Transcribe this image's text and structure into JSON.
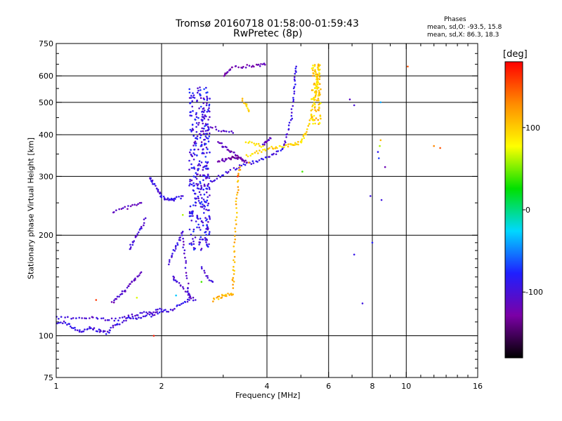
{
  "header": {
    "title_line1": "Tromsø 20160718 01:58:00-01:59:43",
    "title_line2": "RwPretec (8p)"
  },
  "stats": {
    "heading": "Phases",
    "o_mode": "mean, sd,O: -93.5, 15.8",
    "x_mode": "mean, sd,X: 86.3, 18.3"
  },
  "colorbar": {
    "unit_label": "[deg]",
    "ticks": [
      100,
      0,
      -100
    ],
    "range": [
      -180,
      180
    ],
    "colors": [
      "#000000",
      "#7b00a6",
      "#1f1fff",
      "#00d8ff",
      "#00e000",
      "#ffff00",
      "#ff8c00",
      "#ff0000"
    ]
  },
  "chart_data": {
    "type": "scatter",
    "title": "Tromsø 20160718 01:58:00-01:59:43",
    "subtitle": "RwPretec (8p)",
    "xlabel": "Frequency [MHz]",
    "ylabel": "Stationary phase Virtual Height [km]",
    "xscale": "log",
    "yscale": "log",
    "xlim": [
      1,
      16
    ],
    "ylim": [
      75,
      750
    ],
    "xticks": [
      1,
      2,
      4,
      6,
      8,
      10,
      16
    ],
    "yticks": [
      75,
      100,
      200,
      300,
      400,
      500,
      600,
      750
    ],
    "xgrid": [
      2,
      4,
      6,
      8,
      10
    ],
    "ygrid": [
      100,
      200,
      300,
      400,
      500,
      600
    ],
    "grid": true,
    "color_scale": "phase [deg]",
    "series": [
      {
        "traces": [
          {
            "pts": [
              [
                1.0,
                108
              ],
              [
                1.05,
                110
              ],
              [
                1.1,
                107
              ],
              [
                1.15,
                104
              ],
              [
                1.2,
                103
              ],
              [
                1.25,
                106
              ],
              [
                1.3,
                104
              ],
              [
                1.35,
                103
              ],
              [
                1.4,
                102
              ],
              [
                1.45,
                106
              ],
              [
                1.5,
                108
              ],
              [
                1.6,
                112
              ],
              [
                1.7,
                113
              ],
              [
                1.8,
                114
              ],
              [
                1.9,
                116
              ],
              [
                2.0,
                118
              ],
              [
                2.1,
                119
              ],
              [
                2.2,
                122
              ],
              [
                2.3,
                125
              ],
              [
                2.4,
                128
              ]
            ],
            "phase": -95
          },
          {
            "pts": [
              [
                1.0,
                113
              ],
              [
                1.1,
                113
              ],
              [
                1.2,
                114
              ],
              [
                1.3,
                113
              ],
              [
                1.4,
                112
              ],
              [
                1.5,
                112
              ],
              [
                1.6,
                114
              ],
              [
                1.7,
                116
              ],
              [
                1.8,
                117
              ],
              [
                1.9,
                118
              ],
              [
                2.0,
                120
              ]
            ],
            "phase": -100
          },
          {
            "pts": [
              [
                1.45,
                125
              ],
              [
                1.5,
                130
              ],
              [
                1.55,
                135
              ],
              [
                1.6,
                140
              ],
              [
                1.65,
                145
              ],
              [
                1.7,
                150
              ],
              [
                1.75,
                155
              ]
            ],
            "phase": -110
          },
          {
            "pts": [
              [
                1.45,
                235
              ],
              [
                1.55,
                240
              ],
              [
                1.65,
                245
              ],
              [
                1.75,
                250
              ]
            ],
            "phase": -110
          },
          {
            "pts": [
              [
                1.62,
                180
              ],
              [
                1.65,
                190
              ],
              [
                1.7,
                200
              ],
              [
                1.75,
                210
              ],
              [
                1.8,
                225
              ]
            ],
            "phase": -100
          },
          {
            "pts": [
              [
                1.85,
                295
              ],
              [
                1.88,
                290
              ],
              [
                1.92,
                280
              ],
              [
                1.96,
                270
              ],
              [
                2.0,
                262
              ],
              [
                2.05,
                258
              ],
              [
                2.1,
                256
              ],
              [
                2.15,
                255
              ],
              [
                2.2,
                257
              ],
              [
                2.3,
                262
              ]
            ],
            "phase": -95
          },
          {
            "pts": [
              [
                2.1,
                165
              ],
              [
                2.15,
                175
              ],
              [
                2.2,
                185
              ],
              [
                2.25,
                195
              ],
              [
                2.3,
                205
              ]
            ],
            "phase": -95
          },
          {
            "pts": [
              [
                2.15,
                150
              ],
              [
                2.2,
                145
              ],
              [
                2.3,
                140
              ],
              [
                2.4,
                132
              ],
              [
                2.5,
                128
              ]
            ],
            "phase": -100
          }
        ],
        "cloud": {
          "x": [
            2.4,
            2.75
          ],
          "y": [
            180,
            560
          ],
          "n": 360,
          "phase": -92
        }
      },
      {
        "traces": [
          {
            "pts": [
              [
                2.55,
                275
              ],
              [
                2.7,
                285
              ],
              [
                2.85,
                295
              ],
              [
                3.0,
                305
              ],
              [
                3.2,
                315
              ],
              [
                3.4,
                325
              ],
              [
                3.6,
                330
              ],
              [
                3.8,
                335
              ],
              [
                4.0,
                340
              ],
              [
                4.2,
                350
              ],
              [
                4.4,
                362
              ],
              [
                4.5,
                380
              ],
              [
                4.6,
                410
              ],
              [
                4.7,
                450
              ],
              [
                4.75,
                500
              ],
              [
                4.8,
                550
              ],
              [
                4.82,
                600
              ],
              [
                4.85,
                640
              ]
            ],
            "phase": -95
          },
          {
            "pts": [
              [
                3.0,
                600
              ],
              [
                3.1,
                620
              ],
              [
                3.2,
                635
              ],
              [
                3.4,
                640
              ],
              [
                3.6,
                642
              ],
              [
                3.8,
                645
              ],
              [
                3.95,
                648
              ]
            ],
            "phase": -120
          },
          {
            "pts": [
              [
                2.9,
                380
              ],
              [
                3.0,
                370
              ],
              [
                3.1,
                360
              ],
              [
                3.2,
                352
              ],
              [
                3.3,
                345
              ],
              [
                3.4,
                335
              ],
              [
                3.5,
                330
              ]
            ],
            "phase": -120
          },
          {
            "pts": [
              [
                2.9,
                330
              ],
              [
                3.0,
                335
              ],
              [
                3.1,
                340
              ],
              [
                3.2,
                342
              ],
              [
                3.3,
                340
              ],
              [
                3.4,
                338
              ]
            ],
            "phase": -125
          },
          {
            "pts": [
              [
                2.3,
                200
              ],
              [
                2.32,
                180
              ],
              [
                2.35,
                160
              ],
              [
                2.38,
                140
              ],
              [
                2.4,
                130
              ]
            ],
            "phase": -105
          },
          {
            "pts": [
              [
                2.6,
                410
              ],
              [
                2.8,
                420
              ],
              [
                3.0,
                410
              ],
              [
                3.2,
                405
              ]
            ],
            "phase": -105
          },
          {
            "pts": [
              [
                2.6,
                160
              ],
              [
                2.7,
                150
              ],
              [
                2.8,
                145
              ]
            ],
            "phase": -100
          },
          {
            "pts": [
              [
                3.9,
                375
              ],
              [
                4.0,
                380
              ],
              [
                4.1,
                390
              ]
            ],
            "phase": -110
          }
        ]
      },
      {
        "traces": [
          {
            "pts": [
              [
                2.8,
                128
              ],
              [
                2.9,
                130
              ],
              [
                3.0,
                132
              ],
              [
                3.1,
                133
              ],
              [
                3.2,
                133
              ]
            ],
            "phase": 110
          },
          {
            "pts": [
              [
                3.2,
                140
              ],
              [
                3.21,
                150
              ],
              [
                3.22,
                165
              ],
              [
                3.23,
                185
              ],
              [
                3.25,
                210
              ],
              [
                3.27,
                240
              ],
              [
                3.29,
                270
              ],
              [
                3.32,
                300
              ],
              [
                3.35,
                320
              ]
            ],
            "phase": 110
          },
          {
            "pts": [
              [
                3.5,
                345
              ],
              [
                3.7,
                352
              ],
              [
                3.9,
                360
              ],
              [
                4.1,
                365
              ],
              [
                4.3,
                368
              ],
              [
                4.5,
                370
              ],
              [
                4.7,
                372
              ],
              [
                4.85,
                375
              ],
              [
                5.0,
                380
              ],
              [
                5.1,
                395
              ],
              [
                5.2,
                410
              ],
              [
                5.3,
                440
              ],
              [
                5.4,
                480
              ],
              [
                5.5,
                520
              ],
              [
                5.55,
                560
              ],
              [
                5.6,
                600
              ],
              [
                5.63,
                640
              ]
            ],
            "phase": 95
          },
          {
            "pts": [
              [
                5.5,
                650
              ],
              [
                5.55,
                600
              ],
              [
                5.6,
                560
              ],
              [
                5.62,
                520
              ],
              [
                5.64,
                480
              ]
            ],
            "phase": 100
          },
          {
            "pts": [
              [
                3.4,
                510
              ],
              [
                3.5,
                490
              ],
              [
                3.55,
                470
              ]
            ],
            "phase": 100
          },
          {
            "pts": [
              [
                3.5,
                380
              ],
              [
                3.7,
                375
              ],
              [
                3.9,
                370
              ]
            ],
            "phase": 90
          }
        ],
        "cloud": {
          "x": [
            5.35,
            5.7
          ],
          "y": [
            430,
            650
          ],
          "n": 80,
          "phase": 100
        }
      },
      {
        "scatter": [
          [
            7.1,
            490,
            -100
          ],
          [
            7.1,
            175,
            -90
          ],
          [
            7.5,
            125,
            -95
          ],
          [
            7.9,
            262,
            -95
          ],
          [
            8.0,
            190,
            -80
          ],
          [
            8.3,
            355,
            -85
          ],
          [
            8.35,
            340,
            -70
          ],
          [
            8.4,
            370,
            60
          ],
          [
            8.45,
            385,
            110
          ],
          [
            8.5,
            255,
            -95
          ],
          [
            8.45,
            500,
            -40
          ],
          [
            8.7,
            320,
            -120
          ],
          [
            10.1,
            640,
            150
          ],
          [
            12.0,
            370,
            130
          ],
          [
            12.5,
            365,
            150
          ],
          [
            6.9,
            510,
            -110
          ],
          [
            5.05,
            310,
            40
          ],
          [
            3.55,
            330,
            120
          ],
          [
            3.3,
            300,
            170
          ],
          [
            2.3,
            230,
            60
          ],
          [
            2.6,
            145,
            40
          ],
          [
            1.3,
            128,
            160
          ],
          [
            1.9,
            100,
            170
          ],
          [
            1.7,
            130,
            70
          ],
          [
            2.2,
            132,
            -30
          ]
        ]
      }
    ]
  }
}
